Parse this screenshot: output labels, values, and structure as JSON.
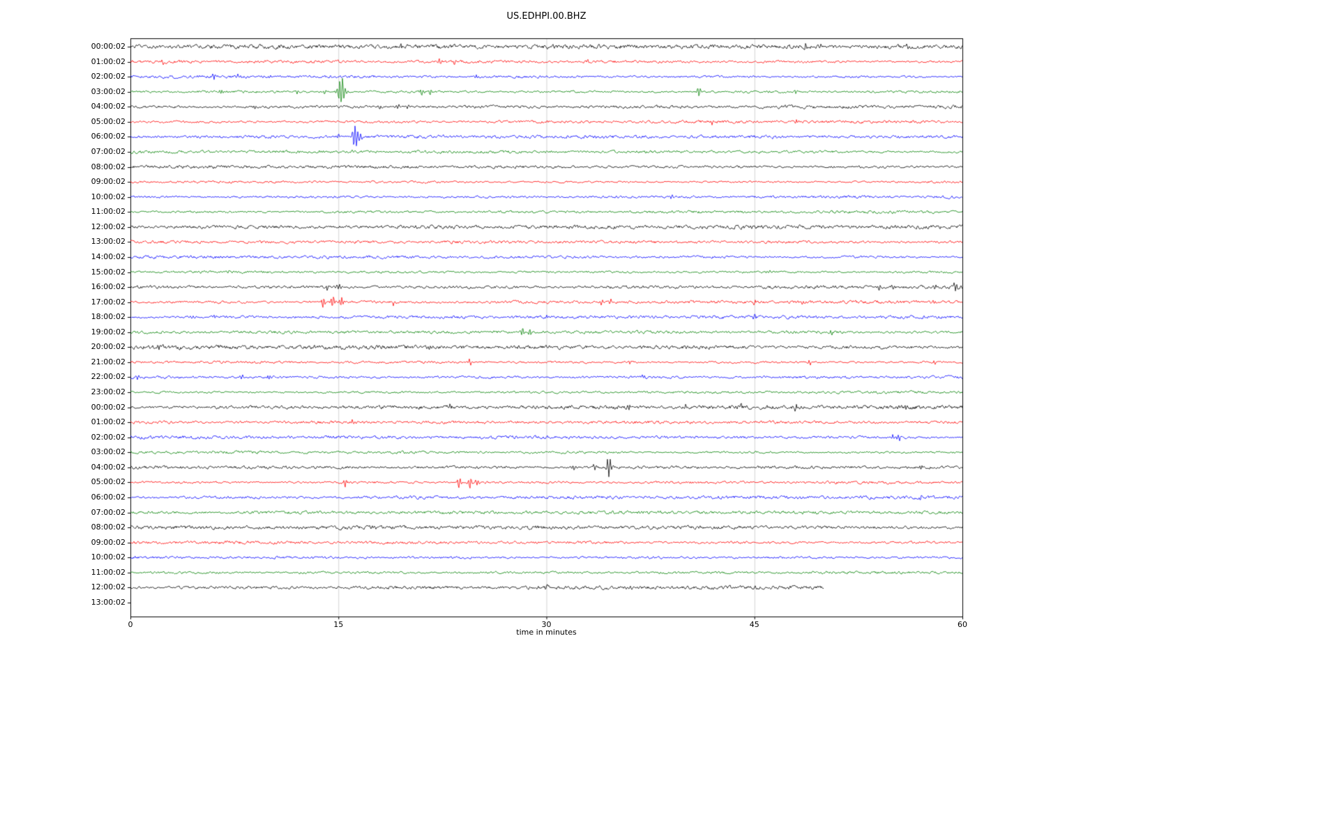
{
  "chart_data": {
    "type": "line",
    "title": "US.EDHPI.00.BHZ",
    "xlabel": "time in minutes",
    "x_ticks": [
      0,
      15,
      30,
      45,
      60
    ],
    "x_range": [
      0,
      60
    ],
    "grid": "vertical-only",
    "legend": "none",
    "colors": {
      "black": "#000000",
      "red": "#ff0000",
      "blue": "#0000ff",
      "green": "#008000"
    },
    "rows": [
      {
        "label": "00:00:02",
        "color": "black",
        "end": 60,
        "noise": 1.6,
        "events": [
          [
            19.5,
            2.5
          ],
          [
            48.7,
            5
          ],
          [
            49.8,
            4
          ],
          [
            56,
            2.5
          ]
        ]
      },
      {
        "label": "01:00:02",
        "color": "red",
        "end": 60,
        "noise": 1.1,
        "events": [
          [
            2.3,
            4
          ],
          [
            15,
            2.5
          ],
          [
            22.3,
            5
          ],
          [
            23.3,
            3.5
          ],
          [
            33,
            2.5
          ]
        ]
      },
      {
        "label": "02:00:02",
        "color": "blue",
        "end": 60,
        "noise": 1.2,
        "events": [
          [
            6,
            5
          ],
          [
            7.8,
            3.5
          ],
          [
            10,
            2.5
          ],
          [
            25,
            3.5
          ]
        ]
      },
      {
        "label": "03:00:02",
        "color": "green",
        "end": 60,
        "noise": 1.2,
        "events": [
          [
            6.5,
            4
          ],
          [
            12,
            3
          ],
          [
            14,
            3
          ],
          [
            15.2,
            20
          ],
          [
            21,
            6
          ],
          [
            21.6,
            4
          ],
          [
            41,
            8
          ],
          [
            46,
            3
          ],
          [
            48,
            3
          ]
        ]
      },
      {
        "label": "04:00:02",
        "color": "black",
        "end": 60,
        "noise": 1.4,
        "events": [
          [
            9,
            2.5
          ],
          [
            18,
            3
          ],
          [
            19.3,
            4
          ],
          [
            20,
            3.5
          ]
        ]
      },
      {
        "label": "05:00:02",
        "color": "red",
        "end": 60,
        "noise": 1.1,
        "events": [
          [
            30,
            2
          ],
          [
            42,
            4
          ],
          [
            48,
            3.5
          ]
        ]
      },
      {
        "label": "06:00:02",
        "color": "blue",
        "end": 60,
        "noise": 1.2,
        "events": [
          [
            15,
            4
          ],
          [
            16.2,
            16
          ],
          [
            16.6,
            6
          ]
        ]
      },
      {
        "label": "07:00:02",
        "color": "green",
        "end": 60,
        "noise": 1.1,
        "events": [
          [
            16,
            2.5
          ]
        ]
      },
      {
        "label": "08:00:02",
        "color": "black",
        "end": 60,
        "noise": 1.3,
        "events": []
      },
      {
        "label": "09:00:02",
        "color": "red",
        "end": 60,
        "noise": 1.1,
        "events": []
      },
      {
        "label": "10:00:02",
        "color": "blue",
        "end": 60,
        "noise": 1.2,
        "events": [
          [
            39,
            2.5
          ]
        ]
      },
      {
        "label": "11:00:02",
        "color": "green",
        "end": 60,
        "noise": 1.1,
        "events": []
      },
      {
        "label": "12:00:02",
        "color": "black",
        "end": 60,
        "noise": 1.4,
        "events": []
      },
      {
        "label": "13:00:02",
        "color": "red",
        "end": 60,
        "noise": 1.1,
        "events": []
      },
      {
        "label": "14:00:02",
        "color": "blue",
        "end": 60,
        "noise": 1.2,
        "events": []
      },
      {
        "label": "15:00:02",
        "color": "green",
        "end": 60,
        "noise": 1.1,
        "events": [
          [
            7,
            2.5
          ],
          [
            46,
            2.5
          ]
        ]
      },
      {
        "label": "16:00:02",
        "color": "black",
        "end": 60,
        "noise": 1.5,
        "events": [
          [
            14.2,
            4
          ],
          [
            15,
            5
          ],
          [
            54,
            4
          ],
          [
            55,
            3.5
          ],
          [
            58,
            3
          ],
          [
            59.5,
            7
          ]
        ]
      },
      {
        "label": "17:00:02",
        "color": "red",
        "end": 60,
        "noise": 1.3,
        "events": [
          [
            13.9,
            8
          ],
          [
            14.6,
            9
          ],
          [
            15.2,
            7
          ],
          [
            19,
            4
          ],
          [
            34,
            4
          ],
          [
            34.6,
            3.5
          ],
          [
            45,
            3
          ],
          [
            48.5,
            3
          ],
          [
            58,
            3
          ]
        ]
      },
      {
        "label": "18:00:02",
        "color": "blue",
        "end": 60,
        "noise": 1.2,
        "events": [
          [
            4.5,
            4
          ],
          [
            6,
            3.5
          ],
          [
            30,
            2.5
          ],
          [
            45,
            3.5
          ]
        ]
      },
      {
        "label": "19:00:02",
        "color": "green",
        "end": 60,
        "noise": 1.1,
        "events": [
          [
            28.3,
            8
          ],
          [
            28.8,
            5
          ],
          [
            50.5,
            3.5
          ]
        ]
      },
      {
        "label": "20:00:02",
        "color": "black",
        "end": 60,
        "noise": 1.6,
        "events": [
          [
            2,
            3
          ],
          [
            21.5,
            3.5
          ],
          [
            24,
            3.5
          ]
        ]
      },
      {
        "label": "21:00:02",
        "color": "red",
        "end": 60,
        "noise": 1.1,
        "events": [
          [
            24.5,
            4.5
          ],
          [
            36,
            2.5
          ],
          [
            49,
            3.5
          ],
          [
            58,
            4
          ]
        ]
      },
      {
        "label": "22:00:02",
        "color": "blue",
        "end": 60,
        "noise": 1.3,
        "events": [
          [
            0.5,
            4
          ],
          [
            8,
            3.5
          ],
          [
            10,
            3.5
          ],
          [
            37,
            3.5
          ]
        ]
      },
      {
        "label": "23:00:02",
        "color": "green",
        "end": 60,
        "noise": 1.1,
        "events": []
      },
      {
        "label": "00:00:02",
        "color": "black",
        "end": 60,
        "noise": 1.5,
        "events": [
          [
            23,
            3
          ],
          [
            36,
            3.5
          ],
          [
            40,
            3
          ],
          [
            44,
            3
          ],
          [
            48,
            3.5
          ],
          [
            56,
            3.5
          ]
        ]
      },
      {
        "label": "01:00:02",
        "color": "red",
        "end": 60,
        "noise": 1.1,
        "events": [
          [
            16,
            3.5
          ]
        ]
      },
      {
        "label": "02:00:02",
        "color": "blue",
        "end": 60,
        "noise": 1.2,
        "events": [
          [
            55,
            5
          ],
          [
            55.4,
            4
          ]
        ]
      },
      {
        "label": "03:00:02",
        "color": "green",
        "end": 60,
        "noise": 1.1,
        "events": []
      },
      {
        "label": "04:00:02",
        "color": "black",
        "end": 60,
        "noise": 1.5,
        "events": [
          [
            32,
            3.5
          ],
          [
            33.5,
            4
          ],
          [
            34.5,
            14
          ],
          [
            57,
            3.5
          ]
        ]
      },
      {
        "label": "05:00:02",
        "color": "red",
        "end": 60,
        "noise": 1.2,
        "events": [
          [
            15.5,
            5
          ],
          [
            23.7,
            9
          ],
          [
            24.5,
            9
          ],
          [
            25,
            5
          ]
        ]
      },
      {
        "label": "06:00:02",
        "color": "blue",
        "end": 60,
        "noise": 1.3,
        "events": [
          [
            57,
            2.5
          ]
        ]
      },
      {
        "label": "07:00:02",
        "color": "green",
        "end": 60,
        "noise": 1.2,
        "events": []
      },
      {
        "label": "08:00:02",
        "color": "black",
        "end": 60,
        "noise": 1.4,
        "events": []
      },
      {
        "label": "09:00:02",
        "color": "red",
        "end": 60,
        "noise": 1.2,
        "events": []
      },
      {
        "label": "10:00:02",
        "color": "blue",
        "end": 60,
        "noise": 1.2,
        "events": []
      },
      {
        "label": "11:00:02",
        "color": "green",
        "end": 60,
        "noise": 1.2,
        "events": []
      },
      {
        "label": "12:00:02",
        "color": "black",
        "end": 50,
        "noise": 1.5,
        "events": [
          [
            30,
            2.5
          ],
          [
            36,
            3
          ]
        ]
      },
      {
        "label": "13:00:02",
        "color": "red",
        "end": 0,
        "noise": 0,
        "events": []
      }
    ]
  }
}
